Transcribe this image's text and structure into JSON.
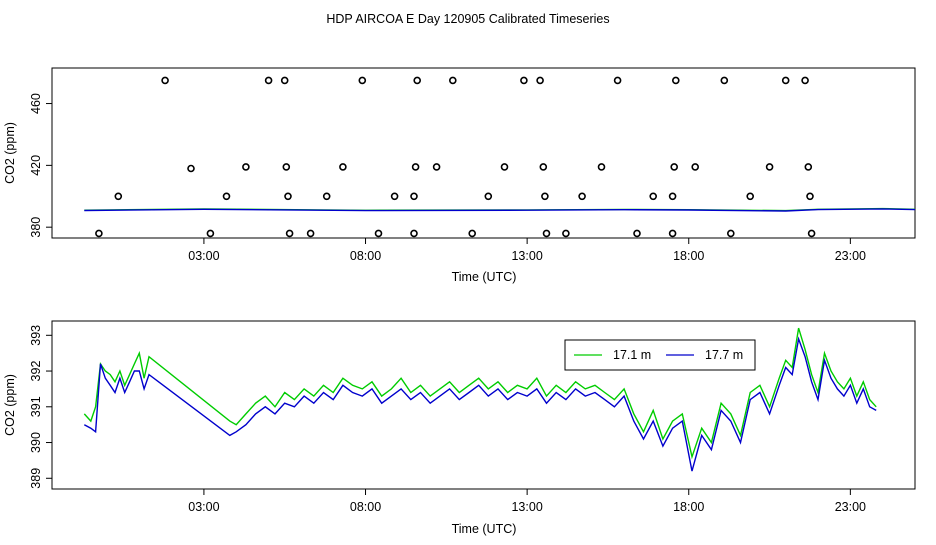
{
  "figure_title": "HDP AIRCOA E  Day 120905  Calibrated Timeseries",
  "chart_data": [
    {
      "type": "scatter",
      "xlabel": "Time (UTC)",
      "ylabel": "CO2 (ppm)",
      "xlim": [
        -1.7,
        25.0
      ],
      "ylim": [
        373,
        483
      ],
      "x_tick_labels": [
        "03:00",
        "08:00",
        "13:00",
        "18:00",
        "23:00"
      ],
      "x_tick_values": [
        3,
        8,
        13,
        18,
        23
      ],
      "y_tick_values": [
        380,
        420,
        460
      ],
      "grid": false,
      "points": [
        {
          "x": -0.25,
          "y": 376
        },
        {
          "x": 0.35,
          "y": 400
        },
        {
          "x": 1.8,
          "y": 475
        },
        {
          "x": 2.6,
          "y": 418
        },
        {
          "x": 3.2,
          "y": 376
        },
        {
          "x": 3.7,
          "y": 400
        },
        {
          "x": 4.3,
          "y": 419
        },
        {
          "x": 5.0,
          "y": 475
        },
        {
          "x": 5.5,
          "y": 475
        },
        {
          "x": 5.55,
          "y": 419
        },
        {
          "x": 5.6,
          "y": 400
        },
        {
          "x": 5.65,
          "y": 376
        },
        {
          "x": 6.3,
          "y": 376
        },
        {
          "x": 6.8,
          "y": 400
        },
        {
          "x": 7.3,
          "y": 419
        },
        {
          "x": 7.9,
          "y": 475
        },
        {
          "x": 8.4,
          "y": 376
        },
        {
          "x": 8.9,
          "y": 400
        },
        {
          "x": 9.5,
          "y": 400
        },
        {
          "x": 9.55,
          "y": 419
        },
        {
          "x": 9.6,
          "y": 475
        },
        {
          "x": 9.5,
          "y": 376
        },
        {
          "x": 10.2,
          "y": 419
        },
        {
          "x": 10.7,
          "y": 475
        },
        {
          "x": 11.3,
          "y": 376
        },
        {
          "x": 11.8,
          "y": 400
        },
        {
          "x": 12.3,
          "y": 419
        },
        {
          "x": 12.9,
          "y": 475
        },
        {
          "x": 13.4,
          "y": 475
        },
        {
          "x": 13.5,
          "y": 419
        },
        {
          "x": 13.55,
          "y": 400
        },
        {
          "x": 13.6,
          "y": 376
        },
        {
          "x": 14.2,
          "y": 376
        },
        {
          "x": 14.7,
          "y": 400
        },
        {
          "x": 15.3,
          "y": 419
        },
        {
          "x": 15.8,
          "y": 475
        },
        {
          "x": 16.4,
          "y": 376
        },
        {
          "x": 16.9,
          "y": 400
        },
        {
          "x": 17.5,
          "y": 400
        },
        {
          "x": 17.55,
          "y": 419
        },
        {
          "x": 17.6,
          "y": 475
        },
        {
          "x": 17.5,
          "y": 376
        },
        {
          "x": 18.2,
          "y": 419
        },
        {
          "x": 19.1,
          "y": 475
        },
        {
          "x": 19.3,
          "y": 376
        },
        {
          "x": 19.9,
          "y": 400
        },
        {
          "x": 20.5,
          "y": 419
        },
        {
          "x": 21.0,
          "y": 475
        },
        {
          "x": 21.6,
          "y": 475
        },
        {
          "x": 21.7,
          "y": 419
        },
        {
          "x": 21.75,
          "y": 400
        },
        {
          "x": 21.8,
          "y": 376
        }
      ],
      "series": [
        {
          "name": "17.1 m",
          "color": "#00cc00",
          "x": [
            -0.7,
            3.0,
            8.0,
            13.0,
            16.0,
            18.0,
            21.0,
            22.0,
            24.0,
            25.0
          ],
          "values": [
            391,
            391.8,
            390.9,
            391.2,
            391.5,
            391.3,
            390.7,
            391.6,
            392,
            391.6
          ]
        },
        {
          "name": "17.7 m",
          "color": "#0000cc",
          "x": [
            -0.7,
            3.0,
            8.0,
            13.0,
            16.0,
            18.0,
            21.0,
            22.0,
            24.0,
            25.0
          ],
          "values": [
            390.8,
            391.6,
            390.7,
            391.0,
            391.3,
            391.1,
            390.5,
            391.4,
            391.8,
            391.4
          ]
        }
      ]
    },
    {
      "type": "line",
      "xlabel": "Time (UTC)",
      "ylabel": "CO2 (ppm)",
      "xlim": [
        -1.7,
        25.0
      ],
      "ylim": [
        388.7,
        393.4
      ],
      "x_tick_labels": [
        "03:00",
        "08:00",
        "13:00",
        "18:00",
        "23:00"
      ],
      "x_tick_values": [
        3,
        8,
        13,
        18,
        23
      ],
      "y_tick_labels": [
        "389",
        "390",
        "391",
        "392",
        "393"
      ],
      "y_tick_values": [
        389,
        390,
        391,
        392,
        393
      ],
      "grid": false,
      "legend": {
        "position": "top-right",
        "entries": [
          "17.1 m",
          "17.7 m"
        ]
      },
      "series": [
        {
          "name": "17.1 m",
          "color": "#00cc00",
          "x": [
            -0.7,
            -0.5,
            -0.35,
            -0.2,
            -0.05,
            0.1,
            0.25,
            0.4,
            0.55,
            0.7,
            0.85,
            1.0,
            1.15,
            1.3,
            3.8,
            4.0,
            4.3,
            4.6,
            4.9,
            5.2,
            5.5,
            5.8,
            6.1,
            6.4,
            6.7,
            7.0,
            7.3,
            7.6,
            7.9,
            8.2,
            8.5,
            8.8,
            9.1,
            9.4,
            9.7,
            10.0,
            10.3,
            10.6,
            10.9,
            11.2,
            11.5,
            11.8,
            12.1,
            12.4,
            12.7,
            13.0,
            13.3,
            13.6,
            13.9,
            14.2,
            14.5,
            14.8,
            15.1,
            15.4,
            15.7,
            16.0,
            16.3,
            16.6,
            16.9,
            17.2,
            17.5,
            17.8,
            18.1,
            18.4,
            18.7,
            19.0,
            19.3,
            19.6,
            19.9,
            20.2,
            20.5,
            20.8,
            21.0,
            21.2,
            21.4,
            21.6,
            21.8,
            22.0,
            22.2,
            22.4,
            22.6,
            22.8,
            23.0,
            23.2,
            23.4,
            23.6,
            23.8
          ],
          "values": [
            390.8,
            390.6,
            391.0,
            392.2,
            392.0,
            391.9,
            391.7,
            392.0,
            391.6,
            391.9,
            392.2,
            392.5,
            391.8,
            392.4,
            390.6,
            390.5,
            390.8,
            391.1,
            391.3,
            391.0,
            391.4,
            391.2,
            391.5,
            391.3,
            391.6,
            391.4,
            391.8,
            391.6,
            391.5,
            391.7,
            391.3,
            391.5,
            391.8,
            391.4,
            391.6,
            391.3,
            391.5,
            391.7,
            391.4,
            391.6,
            391.8,
            391.5,
            391.7,
            391.4,
            391.6,
            391.5,
            391.8,
            391.3,
            391.6,
            391.4,
            391.7,
            391.5,
            391.6,
            391.4,
            391.2,
            391.5,
            390.8,
            390.3,
            390.9,
            390.1,
            390.6,
            390.8,
            389.6,
            390.4,
            390.0,
            391.1,
            390.8,
            390.2,
            391.4,
            391.6,
            391.0,
            391.8,
            392.3,
            392.1,
            393.2,
            392.6,
            391.9,
            391.4,
            392.5,
            392.0,
            391.7,
            391.5,
            391.8,
            391.3,
            391.7,
            391.2,
            391.0
          ]
        },
        {
          "name": "17.7 m",
          "color": "#0000cc",
          "x": [
            -0.7,
            -0.5,
            -0.35,
            -0.2,
            -0.05,
            0.1,
            0.25,
            0.4,
            0.55,
            0.7,
            0.85,
            1.0,
            1.15,
            1.3,
            3.8,
            4.0,
            4.3,
            4.6,
            4.9,
            5.2,
            5.5,
            5.8,
            6.1,
            6.4,
            6.7,
            7.0,
            7.3,
            7.6,
            7.9,
            8.2,
            8.5,
            8.8,
            9.1,
            9.4,
            9.7,
            10.0,
            10.3,
            10.6,
            10.9,
            11.2,
            11.5,
            11.8,
            12.1,
            12.4,
            12.7,
            13.0,
            13.3,
            13.6,
            13.9,
            14.2,
            14.5,
            14.8,
            15.1,
            15.4,
            15.7,
            16.0,
            16.3,
            16.6,
            16.9,
            17.2,
            17.5,
            17.8,
            18.1,
            18.4,
            18.7,
            19.0,
            19.3,
            19.6,
            19.9,
            20.2,
            20.5,
            20.8,
            21.0,
            21.2,
            21.4,
            21.6,
            21.8,
            22.0,
            22.2,
            22.4,
            22.6,
            22.8,
            23.0,
            23.2,
            23.4,
            23.6,
            23.8
          ],
          "values": [
            390.5,
            390.4,
            390.3,
            392.2,
            391.8,
            391.6,
            391.4,
            391.8,
            391.4,
            391.7,
            392.0,
            392.0,
            391.5,
            391.9,
            390.2,
            390.3,
            390.5,
            390.8,
            391.0,
            390.8,
            391.1,
            391.0,
            391.3,
            391.1,
            391.4,
            391.2,
            391.6,
            391.4,
            391.3,
            391.5,
            391.1,
            391.3,
            391.5,
            391.2,
            391.4,
            391.1,
            391.3,
            391.5,
            391.2,
            391.4,
            391.6,
            391.3,
            391.5,
            391.2,
            391.4,
            391.3,
            391.5,
            391.1,
            391.4,
            391.2,
            391.5,
            391.3,
            391.4,
            391.2,
            391.0,
            391.3,
            390.6,
            390.1,
            390.6,
            389.9,
            390.4,
            390.6,
            389.2,
            390.2,
            389.8,
            390.9,
            390.6,
            390.0,
            391.2,
            391.4,
            390.8,
            391.6,
            392.1,
            391.9,
            392.9,
            392.4,
            391.7,
            391.2,
            392.3,
            391.8,
            391.5,
            391.3,
            391.6,
            391.1,
            391.5,
            391.0,
            390.9
          ]
        }
      ]
    }
  ]
}
